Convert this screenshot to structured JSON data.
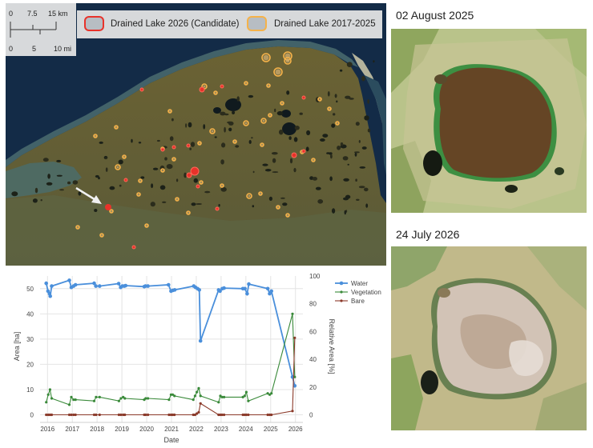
{
  "map": {
    "scale": {
      "km_ticks": [
        "0",
        "7.5",
        "15 km"
      ],
      "mi_ticks": [
        "0",
        "5",
        "10 mi"
      ]
    },
    "legend": [
      {
        "label": "Drained Lake 2026 (Candidate)",
        "color": "#e8322a"
      },
      {
        "label": "Drained Lake 2017-2025",
        "color": "#f5b24a"
      }
    ]
  },
  "photos": [
    {
      "date_label": "02 August 2025",
      "state": "water-filled lake"
    },
    {
      "date_label": "24 July 2026",
      "state": "drained lake basin"
    }
  ],
  "chart_data": {
    "type": "line",
    "xlabel": "Date",
    "ylabel": "Area [ha]",
    "y2label": "Relative Area [%]",
    "xlim": [
      2015.7,
      2026.3
    ],
    "ylim": [
      -3,
      55
    ],
    "y2lim": [
      -5.45,
      100
    ],
    "xticks": [
      "2016",
      "2017",
      "2018",
      "2019",
      "2020",
      "2021",
      "2022",
      "2023",
      "2024",
      "2025",
      "2026"
    ],
    "yticks": [
      "0",
      "10",
      "20",
      "30",
      "40",
      "50"
    ],
    "y2ticks": [
      "0",
      "20",
      "40",
      "60",
      "80",
      "100"
    ],
    "grid": true,
    "legend_position": "top-right",
    "series": [
      {
        "name": "Water",
        "color": "#4a8fdb",
        "x": [
          2015.95,
          2016.02,
          2016.08,
          2016.11,
          2016.17,
          2016.88,
          2016.96,
          2017.05,
          2017.13,
          2017.88,
          2017.95,
          2018.1,
          2018.87,
          2018.95,
          2019.02,
          2019.1,
          2019.15,
          2019.9,
          2019.95,
          2020.05,
          2020.88,
          2020.98,
          2021.05,
          2021.13,
          2021.9,
          2021.97,
          2022.05,
          2022.12,
          2022.17,
          2022.9,
          2022.96,
          2023.05,
          2023.12,
          2023.88,
          2023.96,
          2024.05,
          2024.12,
          2024.88,
          2024.96,
          2025.03,
          2025.88,
          2025.97
        ],
        "y": [
          52.1,
          49.0,
          48.0,
          47.0,
          51.0,
          53.3,
          50.5,
          51.0,
          51.5,
          52.1,
          51.0,
          51.0,
          52.0,
          50.5,
          51.0,
          51.0,
          51.2,
          50.8,
          51.0,
          51.0,
          51.5,
          49.0,
          49.3,
          49.5,
          51.0,
          50.5,
          50.0,
          49.5,
          29.3,
          49.5,
          49.0,
          50.0,
          50.2,
          50.0,
          50.0,
          48.0,
          51.8,
          50.0,
          48.0,
          49.0,
          15.0,
          11.5
        ]
      },
      {
        "name": "Vegetation",
        "color": "#3a8a3a",
        "x": [
          2015.95,
          2016.03,
          2016.1,
          2016.17,
          2016.88,
          2016.96,
          2017.05,
          2017.13,
          2017.88,
          2017.96,
          2018.1,
          2018.88,
          2018.96,
          2019.05,
          2019.12,
          2019.9,
          2019.96,
          2020.05,
          2020.9,
          2020.98,
          2021.05,
          2021.12,
          2021.88,
          2021.95,
          2022.02,
          2022.1,
          2022.17,
          2022.9,
          2022.97,
          2023.04,
          2023.12,
          2023.88,
          2023.95,
          2024.02,
          2024.1,
          2024.88,
          2024.96,
          2025.03,
          2025.88,
          2025.97
        ],
        "y": [
          5.0,
          8.0,
          10.0,
          6.5,
          4.0,
          7.0,
          6.0,
          6.0,
          5.5,
          7.0,
          7.0,
          5.5,
          6.5,
          7.0,
          6.5,
          6.0,
          6.5,
          6.5,
          6.0,
          8.0,
          8.0,
          7.5,
          6.0,
          7.5,
          9.0,
          10.5,
          7.5,
          5.0,
          7.5,
          7.0,
          7.0,
          7.0,
          7.5,
          9.0,
          5.5,
          8.5,
          8.0,
          8.5,
          40.0,
          15.0
        ]
      },
      {
        "name": "Bare",
        "color": "#8b3a2a",
        "x": [
          2015.95,
          2016.03,
          2016.1,
          2016.17,
          2016.88,
          2016.96,
          2017.05,
          2017.13,
          2017.88,
          2017.96,
          2018.1,
          2018.88,
          2018.96,
          2019.05,
          2019.12,
          2019.9,
          2019.96,
          2020.05,
          2020.9,
          2020.98,
          2021.05,
          2021.12,
          2021.88,
          2021.95,
          2022.02,
          2022.1,
          2022.17,
          2022.9,
          2022.97,
          2023.04,
          2023.12,
          2023.88,
          2023.95,
          2024.02,
          2024.1,
          2024.88,
          2024.96,
          2025.03,
          2025.88,
          2025.97
        ],
        "y": [
          0,
          0,
          0,
          0,
          0,
          0,
          0,
          0,
          0,
          0,
          0,
          0,
          0,
          0,
          0,
          0,
          0,
          0,
          0,
          0,
          0,
          0,
          0,
          0,
          0.5,
          1.0,
          4.5,
          0,
          0,
          0,
          0,
          0,
          0,
          0,
          0,
          0,
          0,
          0,
          1.5,
          30.5
        ]
      }
    ]
  }
}
